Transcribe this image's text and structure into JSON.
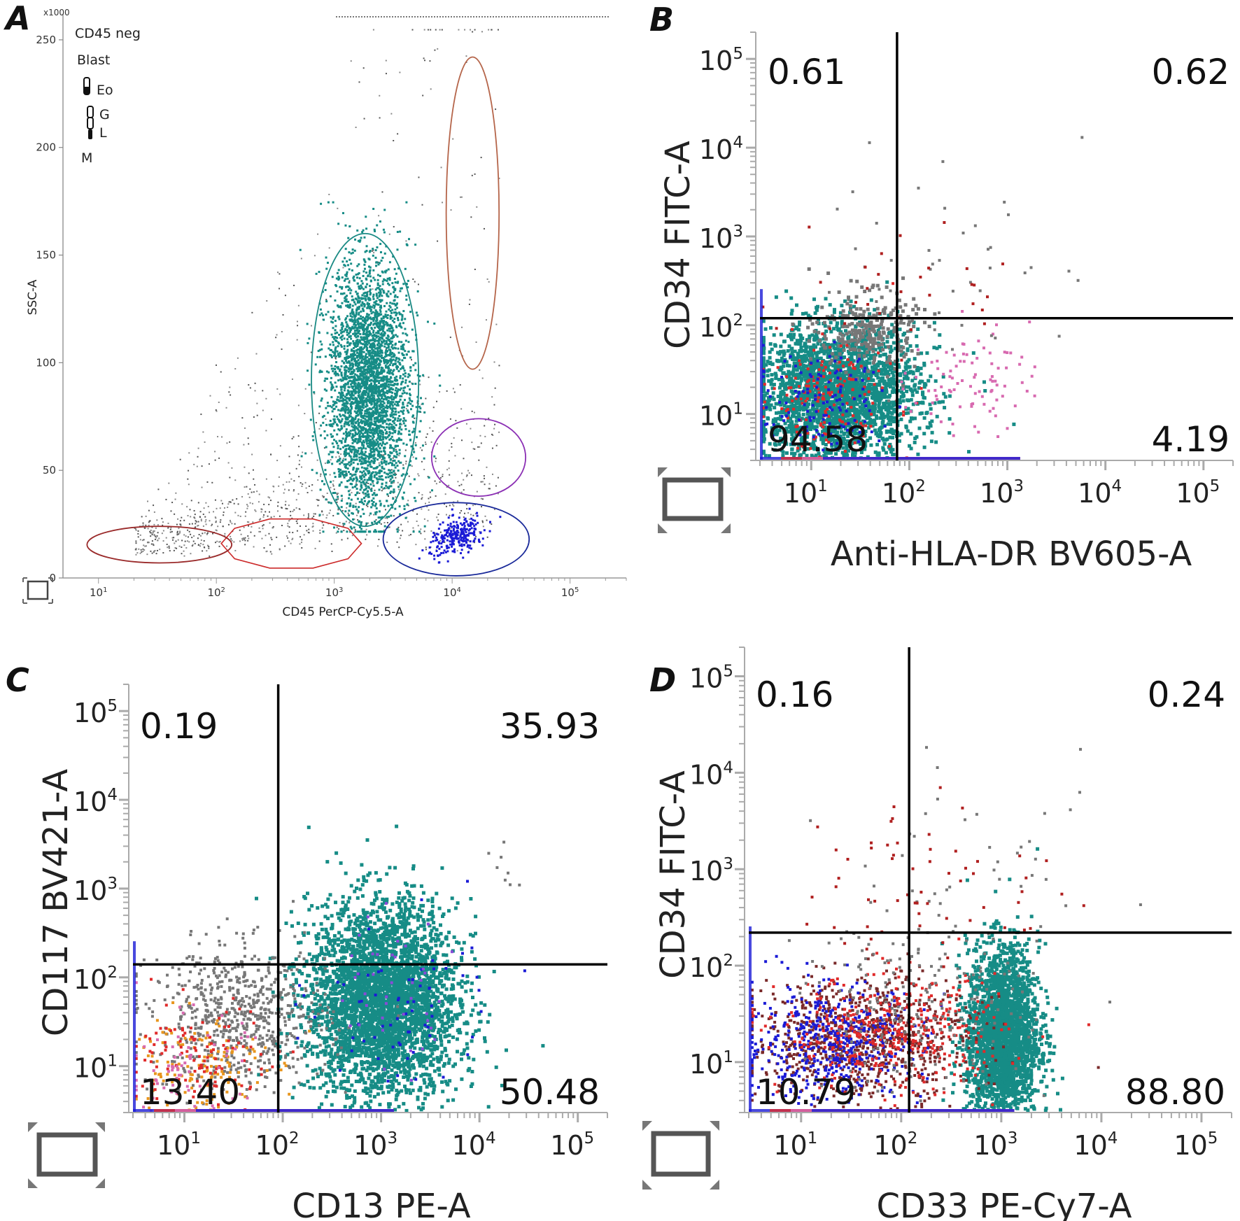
{
  "chart_data": [
    {
      "panel": "A",
      "type": "scatter",
      "xlabel": "CD45 PerCP-Cy5.5-A",
      "ylabel": "SSC-A",
      "x_scale": "log",
      "xlim": [
        5,
        300000
      ],
      "ylim": [
        0,
        262
      ],
      "y_multiplier_label": "x1000",
      "x_ticks": [
        10,
        100,
        1000,
        10000,
        100000
      ],
      "y_ticks": [
        0,
        50,
        100,
        150,
        200,
        250
      ],
      "legend": [
        "CD45 neg",
        "Blast",
        "Eo",
        "G",
        "L",
        "M"
      ],
      "gates": [
        {
          "name": "Blast",
          "color": "#1a8a84",
          "center": [
            1900,
            94
          ],
          "x_range": [
            640,
            5200
          ],
          "y_range": [
            24,
            160
          ]
        },
        {
          "name": "Eo",
          "color": "#b5654a",
          "center": [
            14500,
            155
          ],
          "x_range": [
            8900,
            25000
          ],
          "y_range": [
            97,
            242
          ]
        },
        {
          "name": "G",
          "color": "#8b2fb4",
          "center": [
            13500,
            56
          ],
          "x_range": [
            6700,
            42000
          ],
          "y_range": [
            38,
            74
          ]
        },
        {
          "name": "L",
          "color": "#1a2a9a",
          "center": [
            9000,
            18
          ],
          "x_range": [
            2600,
            45000
          ],
          "y_range": [
            1,
            35
          ]
        },
        {
          "name": "M",
          "color": "#cc2a2a",
          "center": [
            400,
            16
          ],
          "x_range": [
            110,
            1700
          ],
          "y_range": [
            4,
            28
          ]
        },
        {
          "name": "CD45 neg",
          "color": "#9a2a2a",
          "center": [
            34,
            15
          ],
          "x_range": [
            8,
            135
          ],
          "y_range": [
            7,
            24
          ]
        }
      ],
      "populations": [
        {
          "name": "Blast",
          "color": "#168c86",
          "n": 3600,
          "center": [
            1900,
            85
          ]
        },
        {
          "name": "L",
          "color": "#1b1bd6",
          "n": 260,
          "center": [
            11000,
            20
          ]
        },
        {
          "name": "background",
          "color": "#555555",
          "n": 1100
        }
      ]
    },
    {
      "panel": "B",
      "type": "scatter",
      "xlabel": "Anti-HLA-DR BV605-A",
      "ylabel": "CD34 FITC-A",
      "x_scale": "log",
      "y_scale": "log",
      "xlim": [
        3,
        200000
      ],
      "ylim": [
        3,
        200000
      ],
      "x_ticks": [
        10,
        100,
        1000,
        10000,
        100000
      ],
      "y_ticks": [
        10,
        100,
        1000,
        10000,
        100000
      ],
      "quadrant_divider": [
        75,
        120
      ],
      "quadrants": {
        "upper_left": "0.61",
        "upper_right": "0.62",
        "lower_left": "94.58",
        "lower_right": "4.19"
      }
    },
    {
      "panel": "C",
      "type": "scatter",
      "xlabel": "CD13 PE-A",
      "ylabel": "CD117 BV421-A",
      "x_scale": "log",
      "y_scale": "log",
      "xlim": [
        3,
        200000
      ],
      "ylim": [
        3,
        200000
      ],
      "x_ticks": [
        10,
        100,
        1000,
        10000,
        100000
      ],
      "y_ticks": [
        10,
        100,
        1000,
        10000,
        100000
      ],
      "quadrant_divider": [
        90,
        140
      ],
      "quadrants": {
        "upper_left": "0.19",
        "upper_right": "35.93",
        "lower_left": "13.40",
        "lower_right": "50.48"
      }
    },
    {
      "panel": "D",
      "type": "scatter",
      "xlabel": "CD33 PE-Cy7-A",
      "ylabel": "CD34 FITC-A",
      "x_scale": "log",
      "y_scale": "log",
      "xlim": [
        3,
        200000
      ],
      "ylim": [
        3,
        200000
      ],
      "x_ticks": [
        10,
        100,
        1000,
        10000,
        100000
      ],
      "y_ticks": [
        10,
        100,
        1000,
        10000,
        100000
      ],
      "quadrant_divider": [
        120,
        220
      ],
      "quadrants": {
        "upper_left": "0.16",
        "upper_right": "0.24",
        "lower_left": "10.79",
        "lower_right": "88.80"
      }
    }
  ]
}
